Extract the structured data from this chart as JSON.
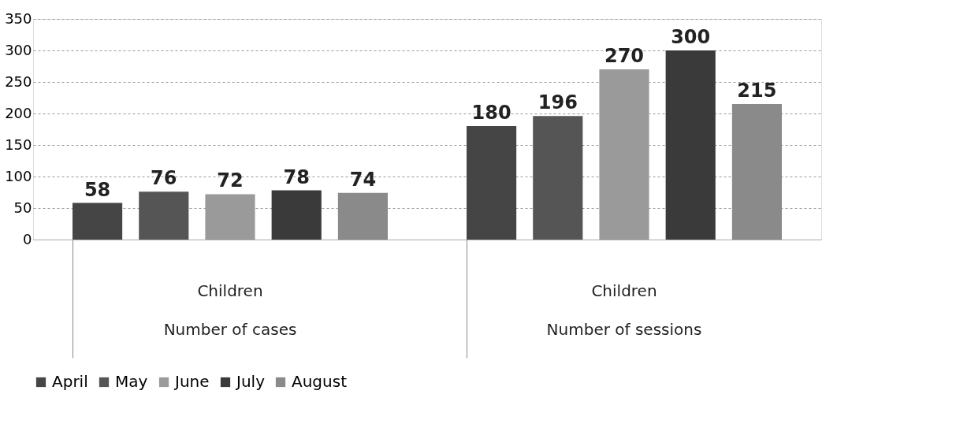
{
  "chart_data": {
    "type": "bar",
    "categories": [
      "Children",
      "Children"
    ],
    "annotations": [
      "Number of cases",
      "Number of sessions"
    ],
    "series": [
      {
        "name": "April",
        "color": "#454545",
        "values": [
          58,
          180
        ]
      },
      {
        "name": "May",
        "color": "#555555",
        "values": [
          76,
          196
        ]
      },
      {
        "name": "June",
        "color": "#9a9a9a",
        "values": [
          72,
          270
        ]
      },
      {
        "name": "July",
        "color": "#3a3a3a",
        "values": [
          78,
          300
        ]
      },
      {
        "name": "August",
        "color": "#8a8a8a",
        "values": [
          74,
          215
        ]
      }
    ],
    "ylim": [
      0,
      350
    ],
    "yticks": [
      0,
      50,
      100,
      150,
      200,
      250,
      300,
      350
    ],
    "grid": "y",
    "data_labels": true,
    "legend": "bottom"
  }
}
